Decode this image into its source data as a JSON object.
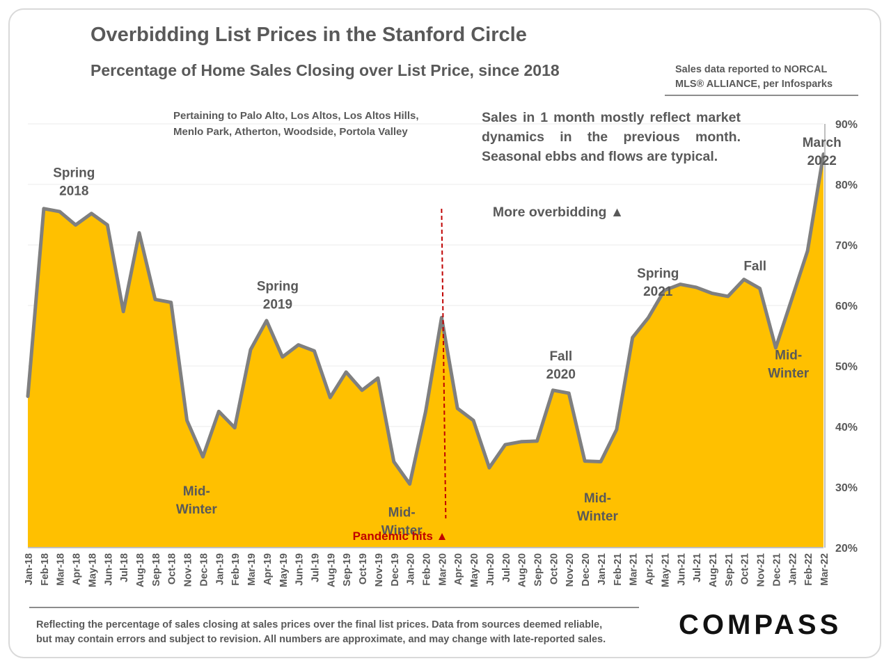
{
  "title": "Overbidding List Prices in the Stanford Circle",
  "subtitle": "Percentage of Home Sales Closing over List Price, since 2018",
  "source_line1": "Sales data reported to NORCAL",
  "source_line2": "MLS® ALLIANCE, per Infosparks",
  "region_note_line1": "Pertaining to Palo Alto, Los Altos, Los Altos Hills,",
  "region_note_line2": "Menlo Park, Atherton, Woodside, Portola Valley",
  "market_note": "Sales in 1 month mostly reflect market dynamics in the previous month. Seasonal ebbs and flows are typical.",
  "more_overbidding": "More overbidding ▲",
  "pandemic_label": "Pandemic hits ▲",
  "footer_line1": "Reflecting the percentage of sales closing at sales prices over the final list prices. Data from sources deemed reliable,",
  "footer_line2": "but may contain errors and subject to revision. All numbers are approximate, and may change with late-reported sales.",
  "logo_text": "COMPASS",
  "colors": {
    "area_fill": "#ffc000",
    "line": "#7f7f7f",
    "pandemic_marker": "#c00000",
    "text": "#595959",
    "gridline": "#f2f2f2"
  },
  "chart_data": {
    "type": "area",
    "x": [
      "Jan-18",
      "Feb-18",
      "Mar-18",
      "Apr-18",
      "May-18",
      "Jun-18",
      "Jul-18",
      "Aug-18",
      "Sep-18",
      "Oct-18",
      "Nov-18",
      "Dec-18",
      "Jan-19",
      "Feb-19",
      "Mar-19",
      "Apr-19",
      "May-19",
      "Jun-19",
      "Jul-19",
      "Aug-19",
      "Sep-19",
      "Oct-19",
      "Nov-19",
      "Dec-19",
      "Jan-20",
      "Feb-20",
      "Mar-20",
      "Apr-20",
      "May-20",
      "Jun-20",
      "Jul-20",
      "Aug-20",
      "Sep-20",
      "Oct-20",
      "Nov-20",
      "Dec-20",
      "Jan-21",
      "Feb-21",
      "Mar-21",
      "Apr-21",
      "May-21",
      "Jun-21",
      "Jul-21",
      "Aug-21",
      "Sep-21",
      "Oct-21",
      "Nov-21",
      "Dec-21",
      "Jan-22",
      "Feb-22",
      "Mar-22"
    ],
    "series": [
      {
        "values": [
          45,
          76,
          75.5,
          73.3,
          75.2,
          73.3,
          59,
          72,
          61,
          60.5,
          41,
          35,
          42.5,
          39.8,
          52.7,
          57.5,
          51.5,
          53.5,
          52.5,
          44.8,
          49,
          46,
          48,
          34.2,
          30.5,
          42.5,
          58,
          43,
          41,
          33.2,
          37,
          37.5,
          37.6,
          46,
          45.5,
          34.3,
          34.2,
          39.5,
          54.7,
          58,
          62.5,
          63.5,
          63,
          62,
          61.5,
          64.3,
          62.8,
          53,
          61,
          69,
          85
        ]
      }
    ],
    "ylim": [
      20,
      90
    ],
    "yticks": [
      "20%",
      "30%",
      "40%",
      "50%",
      "60%",
      "70%",
      "80%",
      "90%"
    ],
    "grid": true,
    "annotations": [
      {
        "lines": [
          "Spring",
          "2018"
        ],
        "x_index": 2.9,
        "y": 81.2
      },
      {
        "lines": [
          "Mid-",
          "Winter"
        ],
        "x_index": 10.6,
        "y": 28.6
      },
      {
        "lines": [
          "Spring",
          "2019"
        ],
        "x_index": 15.7,
        "y": 62.5
      },
      {
        "lines": [
          "Mid-",
          "Winter"
        ],
        "x_index": 23.5,
        "y": 25.1
      },
      {
        "lines": [
          "Fall",
          "2020"
        ],
        "x_index": 33.5,
        "y": 50.9
      },
      {
        "lines": [
          "Mid-",
          "Winter"
        ],
        "x_index": 35.8,
        "y": 27.5
      },
      {
        "lines": [
          "Spring",
          "2021"
        ],
        "x_index": 39.6,
        "y": 64.6
      },
      {
        "lines": [
          "Fall"
        ],
        "x_index": 45.7,
        "y": 65.8
      },
      {
        "lines": [
          "Mid-",
          "Winter"
        ],
        "x_index": 47.8,
        "y": 51.1
      },
      {
        "lines": [
          "March",
          "2022"
        ],
        "x_index": 49.9,
        "y": 86.2
      }
    ],
    "pandemic_index": 26
  }
}
